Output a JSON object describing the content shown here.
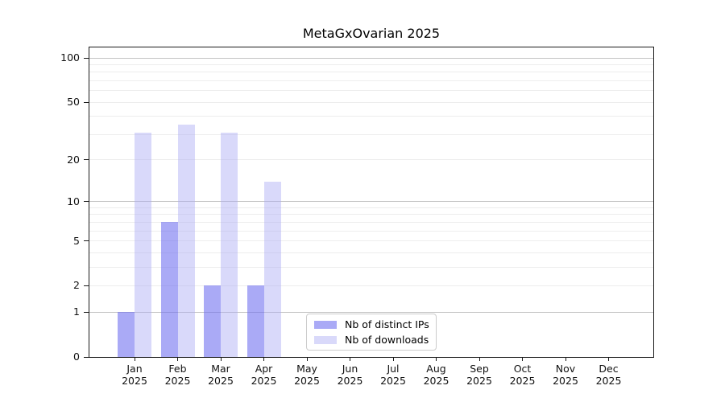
{
  "chart_data": {
    "type": "bar",
    "title": "MetaGxOvarian 2025",
    "categories": [
      "Jan",
      "Feb",
      "Mar",
      "Apr",
      "May",
      "Jun",
      "Jul",
      "Aug",
      "Sep",
      "Oct",
      "Nov",
      "Dec"
    ],
    "year_label": "2025",
    "series": [
      {
        "name": "Nb of distinct IPs",
        "color": "rgba(108,108,240,0.58)",
        "values": [
          1,
          7,
          2,
          2,
          0,
          0,
          0,
          0,
          0,
          0,
          0,
          0
        ]
      },
      {
        "name": "Nb of downloads",
        "color": "rgba(170,170,245,0.45)",
        "values": [
          31,
          35,
          31,
          14,
          0,
          0,
          0,
          0,
          0,
          0,
          0,
          0
        ]
      }
    ],
    "xlabel": "",
    "ylabel": "",
    "yscale": "log1p",
    "ylim": [
      0,
      118
    ],
    "yticks": [
      0,
      1,
      2,
      5,
      10,
      20,
      50,
      100
    ],
    "gridlines": {
      "major": [
        1,
        10,
        100
      ],
      "minor": [
        2,
        3,
        4,
        5,
        6,
        7,
        8,
        9,
        20,
        30,
        40,
        50,
        60,
        70,
        80,
        90
      ]
    },
    "grid": true,
    "legend_position": "lower center"
  },
  "colors": {
    "major_grid": "#c3c3c3",
    "minor_grid": "#ededed",
    "axis": "#1a1a1a",
    "legend_border": "#cccccc",
    "background": "#ffffff"
  }
}
